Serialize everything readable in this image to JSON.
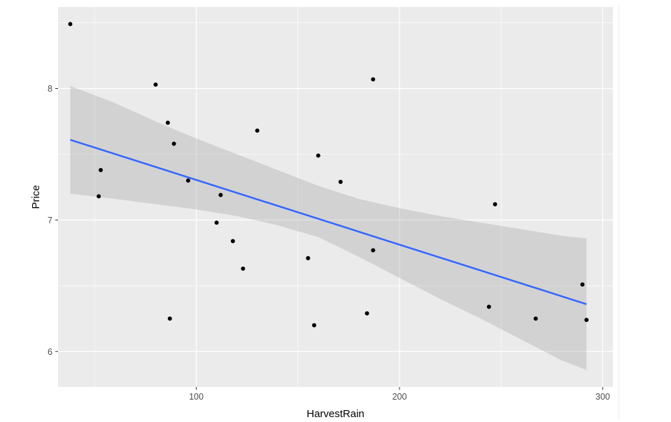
{
  "chart_data": {
    "type": "scatter",
    "title": "",
    "xlabel": "HarvestRain",
    "ylabel": "Price",
    "xlim": [
      32,
      305
    ],
    "ylim": [
      5.73,
      8.62
    ],
    "x_ticks": [
      100,
      200,
      300
    ],
    "y_ticks": [
      6,
      7,
      8
    ],
    "grid": true,
    "points": [
      {
        "x": 38,
        "y": 8.49
      },
      {
        "x": 52,
        "y": 7.18
      },
      {
        "x": 53,
        "y": 7.38
      },
      {
        "x": 80,
        "y": 8.03
      },
      {
        "x": 86,
        "y": 7.74
      },
      {
        "x": 87,
        "y": 6.25
      },
      {
        "x": 89,
        "y": 7.58
      },
      {
        "x": 96,
        "y": 7.3
      },
      {
        "x": 110,
        "y": 6.98
      },
      {
        "x": 112,
        "y": 7.19
      },
      {
        "x": 118,
        "y": 6.84
      },
      {
        "x": 123,
        "y": 6.63
      },
      {
        "x": 130,
        "y": 7.68
      },
      {
        "x": 155,
        "y": 6.71
      },
      {
        "x": 158,
        "y": 6.2
      },
      {
        "x": 160,
        "y": 7.49
      },
      {
        "x": 171,
        "y": 7.29
      },
      {
        "x": 184,
        "y": 6.29
      },
      {
        "x": 187,
        "y": 8.07
      },
      {
        "x": 187,
        "y": 6.77
      },
      {
        "x": 244,
        "y": 6.34
      },
      {
        "x": 247,
        "y": 7.12
      },
      {
        "x": 267,
        "y": 6.25
      },
      {
        "x": 290,
        "y": 6.51
      },
      {
        "x": 292,
        "y": 6.24
      }
    ],
    "trend_line": {
      "x": [
        38,
        292
      ],
      "y": [
        7.61,
        6.36
      ]
    },
    "confidence_band": {
      "x": [
        38,
        60,
        80,
        100,
        120,
        140,
        160,
        180,
        200,
        220,
        240,
        260,
        280,
        292
      ],
      "lower": [
        7.2,
        7.16,
        7.12,
        7.08,
        7.03,
        6.96,
        6.87,
        6.72,
        6.56,
        6.4,
        6.25,
        6.09,
        5.93,
        5.86
      ],
      "upper": [
        8.02,
        7.89,
        7.75,
        7.62,
        7.5,
        7.38,
        7.26,
        7.16,
        7.09,
        7.03,
        6.98,
        6.93,
        6.88,
        6.86
      ]
    },
    "colors": {
      "panel": "#EBEBEB",
      "grid": "#FFFFFF",
      "points": "#000000",
      "line": "#3366FF",
      "band": "#999999"
    }
  }
}
